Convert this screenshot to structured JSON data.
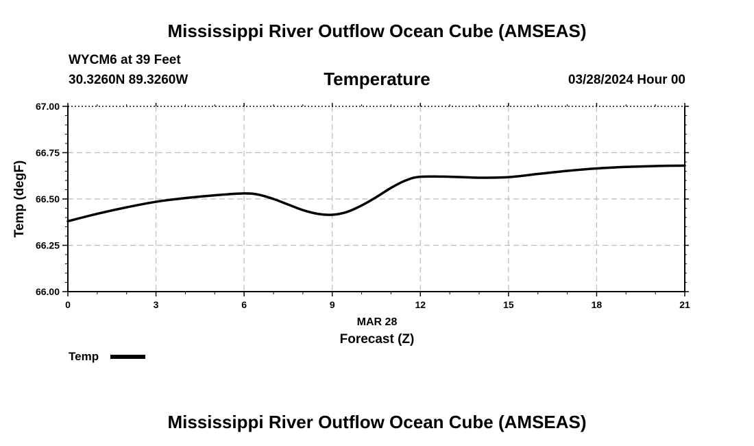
{
  "page": {
    "title_top": "Mississippi River Outflow Ocean Cube (AMSEAS)",
    "title_bottom": "Mississippi River Outflow Ocean Cube (AMSEAS)",
    "station": "WYCM6 at 39 Feet",
    "location": "30.3260N  89.3260W",
    "variable": "Temperature",
    "datetime": "03/28/2024 Hour 00"
  },
  "colors": {
    "line": "#000000",
    "grid": "#bbbbbb",
    "axis": "#000000"
  },
  "chart_data": {
    "type": "line",
    "title": "Temperature",
    "xlabel": "Forecast (Z)",
    "xsublabel": "MAR 28",
    "ylabel": "Temp (degF)",
    "xlim": [
      0,
      21
    ],
    "ylim": [
      66.0,
      67.0
    ],
    "xticks": [
      0,
      3,
      6,
      9,
      12,
      15,
      18,
      21
    ],
    "yticks": [
      66.0,
      66.25,
      66.5,
      66.75,
      67.0
    ],
    "ytick_labels": [
      "66.00",
      "66.25",
      "66.50",
      "66.75",
      "67.00"
    ],
    "grid": true,
    "legend": {
      "position": "bottom-left",
      "entries": [
        {
          "label": "Temp"
        }
      ]
    },
    "series": [
      {
        "name": "Temp",
        "x": [
          0,
          1,
          2,
          3,
          4,
          5,
          6,
          6.5,
          7,
          7.5,
          8,
          8.5,
          9,
          9.5,
          10,
          10.5,
          11,
          11.5,
          12,
          13,
          14,
          15,
          16,
          17,
          18,
          19,
          20,
          21
        ],
        "y": [
          66.38,
          66.42,
          66.455,
          66.485,
          66.505,
          66.52,
          66.53,
          66.523,
          66.5,
          66.47,
          66.44,
          66.42,
          66.415,
          66.43,
          66.465,
          66.51,
          66.56,
          66.6,
          66.62,
          66.62,
          66.615,
          66.618,
          66.635,
          66.652,
          66.665,
          66.673,
          66.678,
          66.68
        ]
      }
    ]
  }
}
